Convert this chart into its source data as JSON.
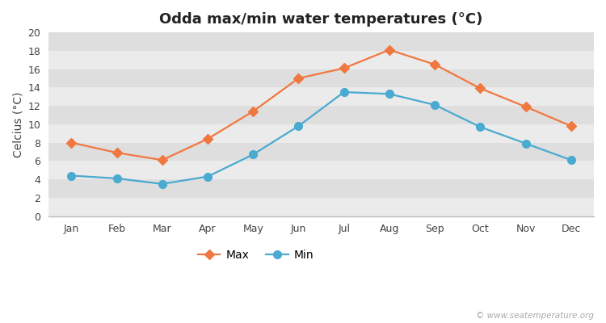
{
  "title": "Odda max/min water temperatures (°C)",
  "ylabel": "Celcius (°C)",
  "months": [
    "Jan",
    "Feb",
    "Mar",
    "Apr",
    "May",
    "Jun",
    "Jul",
    "Aug",
    "Sep",
    "Oct",
    "Nov",
    "Dec"
  ],
  "max_values": [
    8.0,
    6.9,
    6.1,
    8.4,
    11.4,
    15.0,
    16.1,
    18.1,
    16.5,
    13.9,
    11.9,
    9.8
  ],
  "min_values": [
    4.4,
    4.1,
    3.5,
    4.3,
    6.7,
    9.8,
    13.5,
    13.3,
    12.1,
    9.7,
    7.9,
    6.1
  ],
  "max_color": "#f07840",
  "min_color": "#4aaad0",
  "figure_bg": "#ffffff",
  "plot_bg_light": "#f0f0f0",
  "plot_bg_dark": "#e0e0e0",
  "stripe_light": "#ebebeb",
  "stripe_dark": "#dedede",
  "ylim": [
    0,
    20
  ],
  "yticks": [
    0,
    2,
    4,
    6,
    8,
    10,
    12,
    14,
    16,
    18,
    20
  ],
  "watermark": "© www.seatemperature.org",
  "title_fontsize": 13,
  "axis_label_fontsize": 10,
  "tick_fontsize": 9,
  "legend_fontsize": 10,
  "max_marker": "D",
  "min_marker": "o",
  "line_width": 1.6,
  "marker_size_max": 6,
  "marker_size_min": 7
}
